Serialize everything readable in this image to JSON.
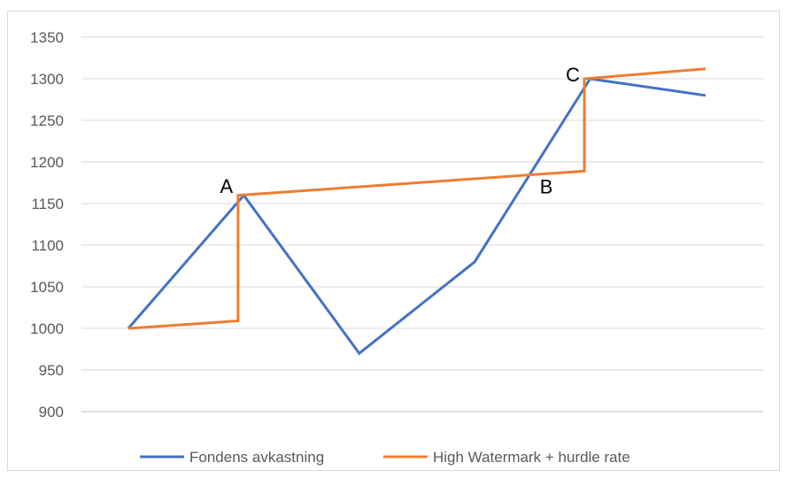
{
  "chart_data": {
    "type": "line",
    "x": [
      0,
      1,
      2,
      3,
      4,
      5
    ],
    "ylim": [
      900,
      1350
    ],
    "ytick_labels": [
      "900",
      "950",
      "1000",
      "1050",
      "1100",
      "1150",
      "1200",
      "1250",
      "1300",
      "1350"
    ],
    "grid": true,
    "legend": "bottom",
    "series": [
      {
        "name": "Fondens avkastning",
        "color": "#4472c4",
        "points": [
          [
            0,
            1000
          ],
          [
            1,
            1160
          ],
          [
            2,
            970
          ],
          [
            3,
            1080
          ],
          [
            4,
            1300
          ],
          [
            5,
            1280
          ]
        ]
      },
      {
        "name": "High Watermark + hurdle rate",
        "color": "#ed7d31",
        "points": [
          [
            0,
            1000
          ],
          [
            0.95,
            1009
          ],
          [
            0.95,
            1160
          ],
          [
            3.95,
            1189
          ],
          [
            3.95,
            1300
          ],
          [
            5,
            1312
          ]
        ]
      }
    ],
    "annotations": [
      {
        "text": "A",
        "x": 0.85,
        "y": 1163
      },
      {
        "text": "B",
        "x": 3.62,
        "y": 1162
      },
      {
        "text": "C",
        "x": 3.85,
        "y": 1297
      }
    ]
  }
}
